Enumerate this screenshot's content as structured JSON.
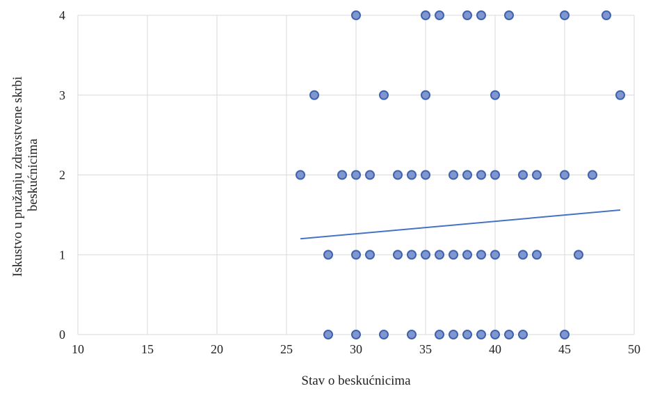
{
  "chart_data": {
    "type": "scatter",
    "xlabel": "Stav o beskućnicima",
    "ylabel_lines": [
      "Iskustvo u pružanju zdravstvene skrbi",
      "beskućnicima"
    ],
    "xlim": [
      10,
      50
    ],
    "ylim": [
      0,
      4
    ],
    "x_ticks": [
      10,
      15,
      20,
      25,
      30,
      35,
      40,
      45,
      50
    ],
    "y_ticks": [
      0,
      1,
      2,
      3,
      4
    ],
    "x_tick_labels": [
      "10",
      "15",
      "20",
      "25",
      "30",
      "35",
      "40",
      "45",
      "50"
    ],
    "y_tick_labels": [
      "0",
      "1",
      "2",
      "3",
      "4"
    ],
    "grid": true,
    "colors": {
      "marker_fill": "#7f96cf",
      "marker_edge": "#3f62b0",
      "trendline": "#4472c4",
      "grid": "#d9d9d9"
    },
    "points": [
      {
        "x": 30,
        "y": 4
      },
      {
        "x": 35,
        "y": 4
      },
      {
        "x": 36,
        "y": 4
      },
      {
        "x": 38,
        "y": 4
      },
      {
        "x": 39,
        "y": 4
      },
      {
        "x": 41,
        "y": 4
      },
      {
        "x": 45,
        "y": 4
      },
      {
        "x": 48,
        "y": 4
      },
      {
        "x": 27,
        "y": 3
      },
      {
        "x": 32,
        "y": 3
      },
      {
        "x": 35,
        "y": 3
      },
      {
        "x": 40,
        "y": 3
      },
      {
        "x": 49,
        "y": 3
      },
      {
        "x": 26,
        "y": 2
      },
      {
        "x": 29,
        "y": 2
      },
      {
        "x": 30,
        "y": 2
      },
      {
        "x": 31,
        "y": 2
      },
      {
        "x": 33,
        "y": 2
      },
      {
        "x": 34,
        "y": 2
      },
      {
        "x": 35,
        "y": 2
      },
      {
        "x": 37,
        "y": 2
      },
      {
        "x": 38,
        "y": 2
      },
      {
        "x": 39,
        "y": 2
      },
      {
        "x": 40,
        "y": 2
      },
      {
        "x": 42,
        "y": 2
      },
      {
        "x": 43,
        "y": 2
      },
      {
        "x": 45,
        "y": 2
      },
      {
        "x": 47,
        "y": 2
      },
      {
        "x": 28,
        "y": 1
      },
      {
        "x": 30,
        "y": 1
      },
      {
        "x": 31,
        "y": 1
      },
      {
        "x": 33,
        "y": 1
      },
      {
        "x": 34,
        "y": 1
      },
      {
        "x": 35,
        "y": 1
      },
      {
        "x": 36,
        "y": 1
      },
      {
        "x": 37,
        "y": 1
      },
      {
        "x": 38,
        "y": 1
      },
      {
        "x": 39,
        "y": 1
      },
      {
        "x": 40,
        "y": 1
      },
      {
        "x": 42,
        "y": 1
      },
      {
        "x": 43,
        "y": 1
      },
      {
        "x": 46,
        "y": 1
      },
      {
        "x": 28,
        "y": 0
      },
      {
        "x": 30,
        "y": 0
      },
      {
        "x": 32,
        "y": 0
      },
      {
        "x": 34,
        "y": 0
      },
      {
        "x": 36,
        "y": 0
      },
      {
        "x": 37,
        "y": 0
      },
      {
        "x": 38,
        "y": 0
      },
      {
        "x": 39,
        "y": 0
      },
      {
        "x": 40,
        "y": 0
      },
      {
        "x": 41,
        "y": 0
      },
      {
        "x": 42,
        "y": 0
      },
      {
        "x": 45,
        "y": 0
      }
    ],
    "trendline": {
      "type": "linear",
      "x": [
        26,
        49
      ],
      "y": [
        1.2,
        1.56
      ]
    }
  }
}
